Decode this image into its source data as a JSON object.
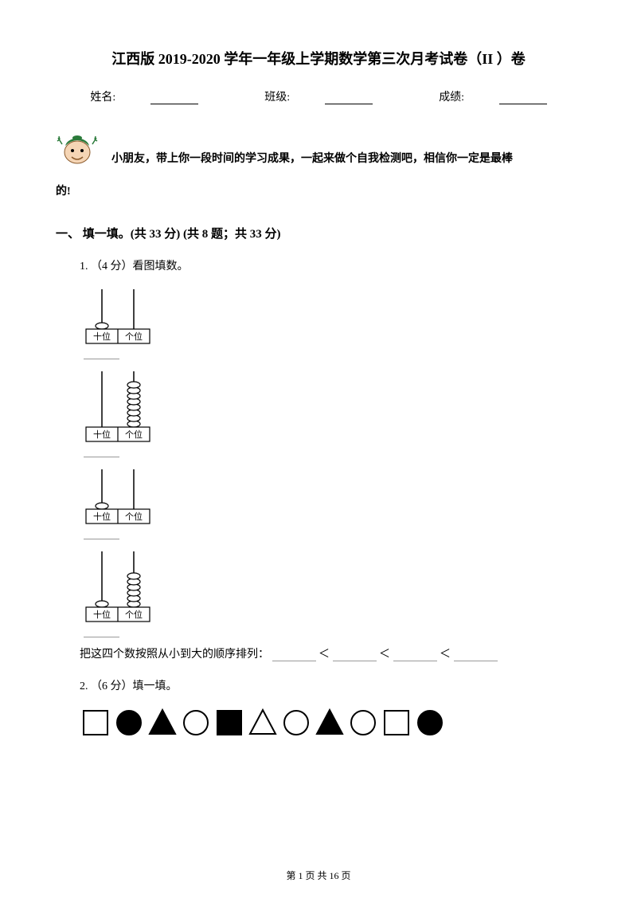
{
  "title": "江西版 2019-2020 学年一年级上学期数学第三次月考试卷（II ）卷",
  "info": {
    "name_label": "姓名:",
    "class_label": "班级:",
    "score_label": "成绩:"
  },
  "intro": {
    "line1": "小朋友，带上你一段时间的学习成果，一起来做个自我检测吧，相信你一定是最棒",
    "line2": "的!"
  },
  "section1": {
    "heading": "一、 填一填。(共 33 分)  (共 8 题；共 33 分)",
    "q1": {
      "label": "1.  （4 分）看图填数。",
      "abacus": [
        {
          "tens_beads": 1,
          "ones_beads": 0,
          "tens_label": "十位",
          "ones_label": "个位"
        },
        {
          "tens_beads": 0,
          "ones_beads": 8,
          "tens_label": "十位",
          "ones_label": "个位"
        },
        {
          "tens_beads": 1,
          "ones_beads": 0,
          "tens_label": "十位",
          "ones_label": "个位"
        },
        {
          "tens_beads": 1,
          "ones_beads": 6,
          "tens_label": "十位",
          "ones_label": "个位"
        }
      ],
      "sort_text": "把这四个数按照从小到大的顺序排列：",
      "lt": "＜"
    },
    "q2": {
      "label": "2.  （6 分）填一填。",
      "shapes": [
        {
          "type": "square",
          "fill": "none"
        },
        {
          "type": "circle",
          "fill": "#000"
        },
        {
          "type": "triangle",
          "fill": "#000"
        },
        {
          "type": "circle",
          "fill": "none"
        },
        {
          "type": "square",
          "fill": "#000"
        },
        {
          "type": "triangle",
          "fill": "none"
        },
        {
          "type": "circle",
          "fill": "none"
        },
        {
          "type": "triangle",
          "fill": "#000"
        },
        {
          "type": "circle",
          "fill": "none"
        },
        {
          "type": "square",
          "fill": "none"
        },
        {
          "type": "circle",
          "fill": "#000"
        }
      ]
    }
  },
  "footer": {
    "page_label": "第 1 页 共 16 页"
  },
  "colors": {
    "text": "#000000",
    "bg": "#ffffff",
    "blank_line": "#999999"
  }
}
